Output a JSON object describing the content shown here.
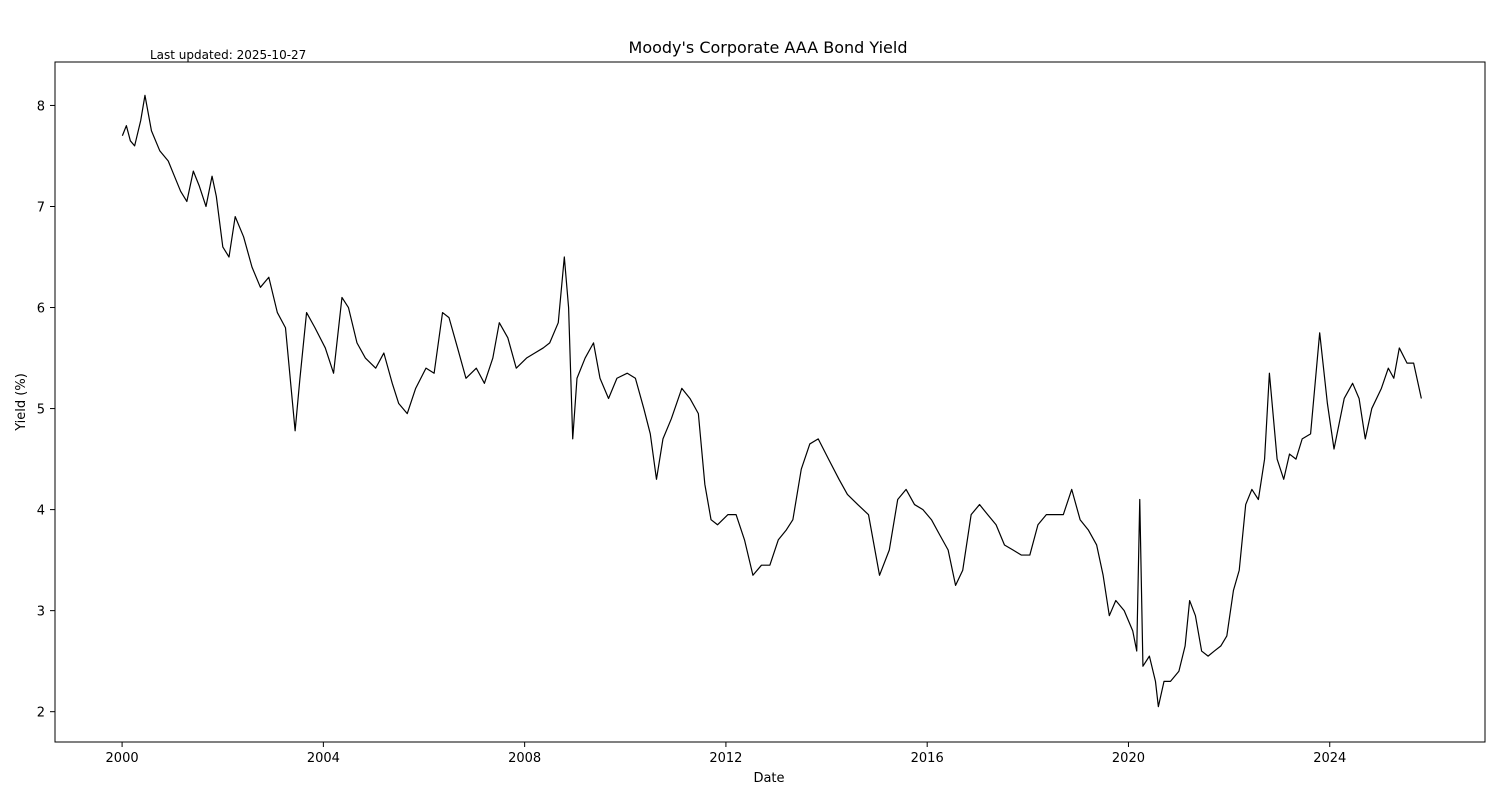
{
  "chart_data": {
    "type": "line",
    "title": "Moody's Corporate AAA Bond Yield",
    "annotation": "Last updated: 2025-10-27",
    "xlabel": "Date",
    "ylabel": "Yield (%)",
    "x_ticks": [
      "2000",
      "2004",
      "2008",
      "2012",
      "2016",
      "2020",
      "2024"
    ],
    "y_ticks": [
      "2",
      "3",
      "4",
      "5",
      "6",
      "7",
      "8"
    ],
    "xlim": [
      "1998-09-01",
      "2027-02-01"
    ],
    "ylim": [
      1.7,
      8.43
    ],
    "grid": false,
    "line_color": "#000000",
    "series": [
      {
        "x": [
          "2000-01-03",
          "2000-02-01",
          "2000-03-01",
          "2000-04-01",
          "2000-05-15",
          "2000-06-15",
          "2000-08-01",
          "2000-10-01",
          "2000-12-01",
          "2001-01-15",
          "2001-03-01",
          "2001-04-15",
          "2001-06-01",
          "2001-07-15",
          "2001-09-01",
          "2001-10-15",
          "2001-11-15",
          "2002-01-01",
          "2002-02-15",
          "2002-04-01",
          "2002-06-01",
          "2002-08-01",
          "2002-10-01",
          "2002-12-01",
          "2003-02-01",
          "2003-04-01",
          "2003-06-10",
          "2003-07-15",
          "2003-09-01",
          "2003-11-01",
          "2004-01-15",
          "2004-03-15",
          "2004-05-15",
          "2004-07-01",
          "2004-09-01",
          "2004-11-01",
          "2005-01-15",
          "2005-03-15",
          "2005-05-15",
          "2005-07-01",
          "2005-09-01",
          "2005-11-01",
          "2006-01-15",
          "2006-03-15",
          "2006-05-15",
          "2006-07-01",
          "2006-09-01",
          "2006-11-01",
          "2007-01-15",
          "2007-03-15",
          "2007-05-15",
          "2007-07-01",
          "2007-09-01",
          "2007-11-01",
          "2008-01-15",
          "2008-03-15",
          "2008-05-15",
          "2008-07-01",
          "2008-09-01",
          "2008-10-15",
          "2008-11-15",
          "2008-12-15",
          "2009-01-15",
          "2009-03-15",
          "2009-05-15",
          "2009-07-01",
          "2009-09-01",
          "2009-11-01",
          "2010-01-15",
          "2010-03-15",
          "2010-05-15",
          "2010-07-01",
          "2010-08-15",
          "2010-10-01",
          "2010-12-01",
          "2011-02-15",
          "2011-04-15",
          "2011-06-15",
          "2011-08-01",
          "2011-09-15",
          "2011-11-01",
          "2012-01-15",
          "2012-03-15",
          "2012-05-15",
          "2012-07-15",
          "2012-09-15",
          "2012-11-15",
          "2013-01-15",
          "2013-03-15",
          "2013-05-01",
          "2013-07-01",
          "2013-09-01",
          "2013-11-01",
          "2014-01-15",
          "2014-04-01",
          "2014-06-01",
          "2014-08-15",
          "2014-11-01",
          "2015-01-20",
          "2015-04-01",
          "2015-06-01",
          "2015-08-01",
          "2015-10-01",
          "2015-12-01",
          "2016-02-01",
          "2016-04-01",
          "2016-06-01",
          "2016-07-25",
          "2016-09-15",
          "2016-11-15",
          "2017-01-15",
          "2017-03-15",
          "2017-05-15",
          "2017-07-15",
          "2017-09-15",
          "2017-11-15",
          "2018-01-15",
          "2018-03-15",
          "2018-05-15",
          "2018-07-15",
          "2018-09-15",
          "2018-11-15",
          "2019-01-15",
          "2019-03-15",
          "2019-05-15",
          "2019-07-01",
          "2019-08-15",
          "2019-10-01",
          "2019-12-01",
          "2020-02-01",
          "2020-03-01",
          "2020-03-23",
          "2020-04-15",
          "2020-06-01",
          "2020-07-15",
          "2020-08-05",
          "2020-09-15",
          "2020-11-01",
          "2021-01-01",
          "2021-02-15",
          "2021-03-20",
          "2021-05-01",
          "2021-06-15",
          "2021-08-01",
          "2021-09-15",
          "2021-11-01",
          "2021-12-15",
          "2022-02-01",
          "2022-03-15",
          "2022-05-01",
          "2022-06-15",
          "2022-08-01",
          "2022-09-15",
          "2022-10-20",
          "2022-12-15",
          "2023-02-01",
          "2023-03-15",
          "2023-05-01",
          "2023-06-15",
          "2023-08-15",
          "2023-10-20",
          "2023-12-15",
          "2024-02-01",
          "2024-04-15",
          "2024-06-15",
          "2024-08-01",
          "2024-09-15",
          "2024-11-01",
          "2025-01-10",
          "2025-03-01",
          "2025-04-10",
          "2025-05-20",
          "2025-07-15",
          "2025-09-01",
          "2025-10-27"
        ],
        "y": [
          7.7,
          7.8,
          7.65,
          7.6,
          7.85,
          8.1,
          7.75,
          7.55,
          7.45,
          7.3,
          7.15,
          7.05,
          7.35,
          7.2,
          7.0,
          7.3,
          7.1,
          6.6,
          6.5,
          6.9,
          6.7,
          6.4,
          6.2,
          6.3,
          5.95,
          5.8,
          4.78,
          5.3,
          5.95,
          5.8,
          5.6,
          5.35,
          6.1,
          6.0,
          5.65,
          5.5,
          5.4,
          5.55,
          5.25,
          5.05,
          4.95,
          5.2,
          5.4,
          5.35,
          5.95,
          5.9,
          5.6,
          5.3,
          5.4,
          5.25,
          5.5,
          5.85,
          5.7,
          5.4,
          5.5,
          5.55,
          5.6,
          5.65,
          5.85,
          6.5,
          6.0,
          4.7,
          5.3,
          5.5,
          5.65,
          5.3,
          5.1,
          5.3,
          5.35,
          5.3,
          5.0,
          4.75,
          4.3,
          4.7,
          4.9,
          5.2,
          5.1,
          4.95,
          4.25,
          3.9,
          3.85,
          3.95,
          3.95,
          3.7,
          3.35,
          3.45,
          3.45,
          3.7,
          3.8,
          3.9,
          4.4,
          4.65,
          4.7,
          4.5,
          4.3,
          4.15,
          4.05,
          3.95,
          3.35,
          3.6,
          4.1,
          4.2,
          4.05,
          4.0,
          3.9,
          3.75,
          3.6,
          3.25,
          3.4,
          3.95,
          4.05,
          3.95,
          3.85,
          3.65,
          3.6,
          3.55,
          3.55,
          3.85,
          3.95,
          3.95,
          3.95,
          4.2,
          3.9,
          3.8,
          3.65,
          3.35,
          2.95,
          3.1,
          3.0,
          2.8,
          2.6,
          4.1,
          2.45,
          2.55,
          2.3,
          2.05,
          2.3,
          2.3,
          2.4,
          2.65,
          3.1,
          2.95,
          2.6,
          2.55,
          2.6,
          2.65,
          2.75,
          3.2,
          3.4,
          4.05,
          4.2,
          4.1,
          4.5,
          5.35,
          4.5,
          4.3,
          4.55,
          4.5,
          4.7,
          4.75,
          5.75,
          5.05,
          4.6,
          5.1,
          5.25,
          5.1,
          4.7,
          5.0,
          5.2,
          5.4,
          5.3,
          5.6,
          5.45,
          5.45,
          5.1
        ]
      }
    ]
  }
}
